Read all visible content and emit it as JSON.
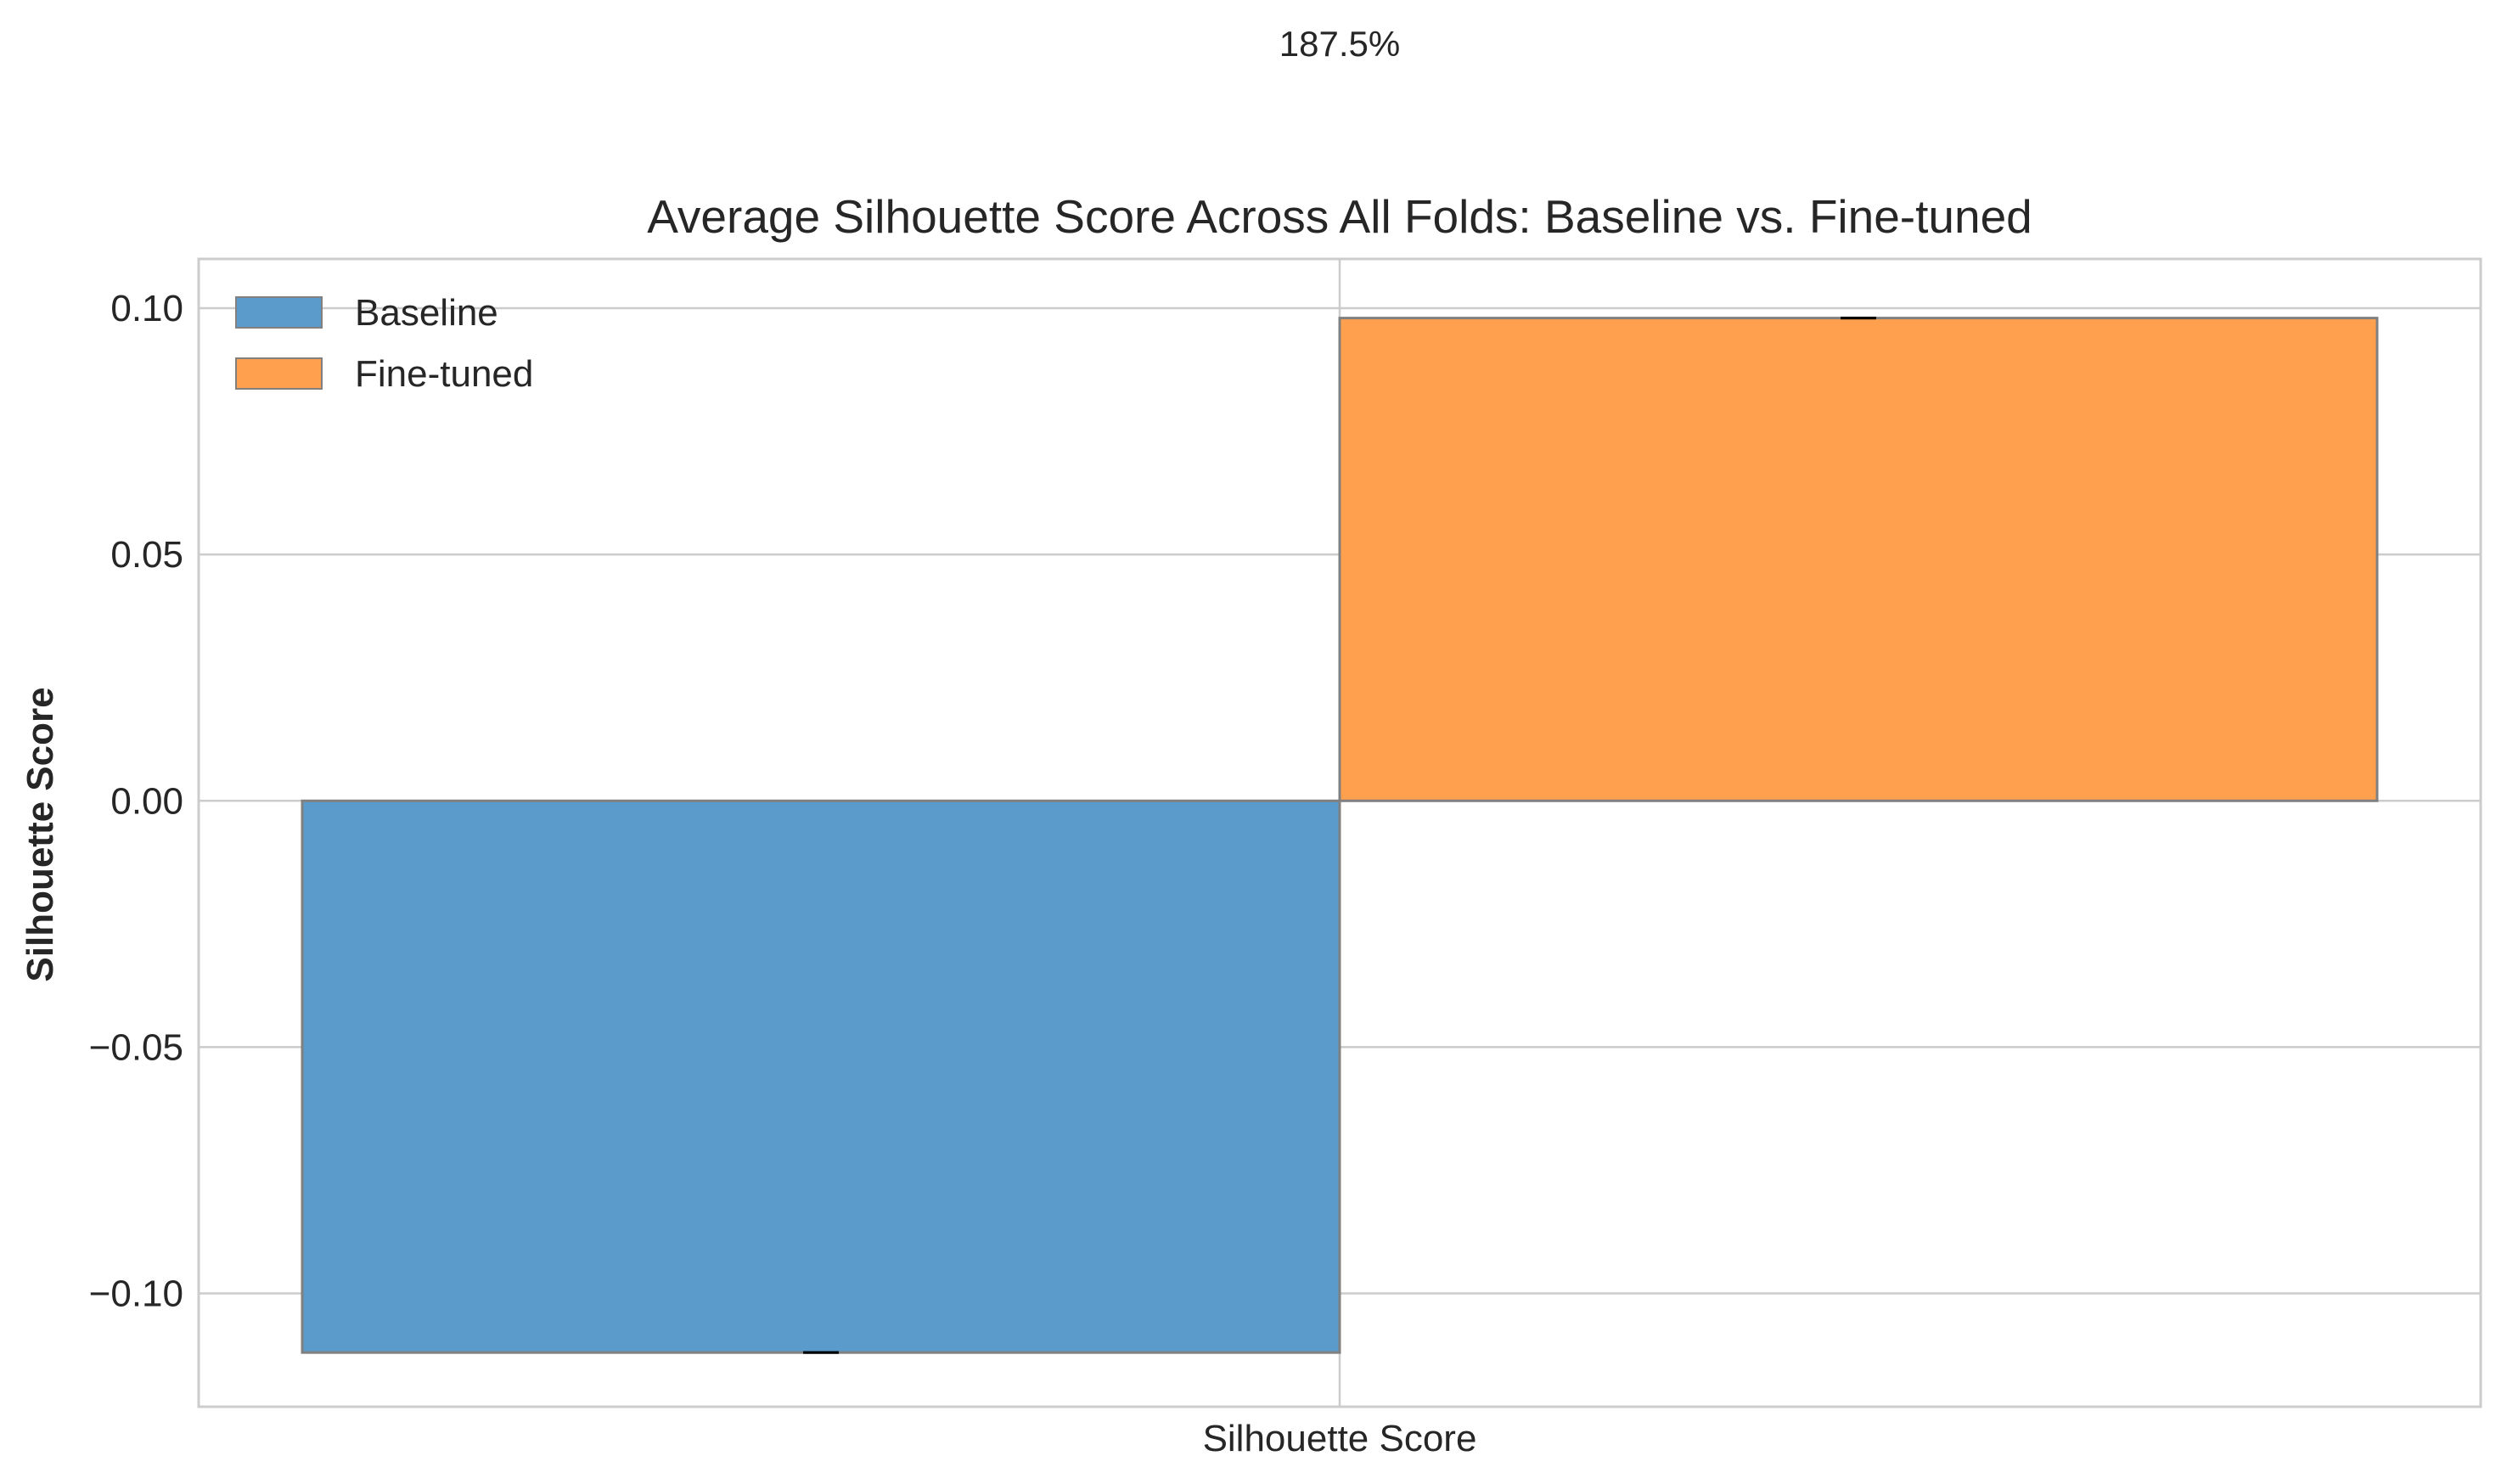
{
  "annotation_top": "187.5%",
  "chart_data": {
    "type": "bar",
    "title": "Average Silhouette Score Across All Folds: Baseline vs. Fine-tuned",
    "xlabel": "",
    "ylabel": "Silhouette Score",
    "categories": [
      "Silhouette Score"
    ],
    "series": [
      {
        "name": "Baseline",
        "values": [
          -0.112
        ],
        "error": [
          0.0
        ],
        "color": "#5b9bcb"
      },
      {
        "name": "Fine-tuned",
        "values": [
          0.098
        ],
        "error": [
          0.0
        ],
        "color": "#ffa04f"
      }
    ],
    "ylim": [
      -0.123,
      0.11
    ],
    "yticks": [
      -0.1,
      -0.05,
      0.0,
      0.05,
      0.1
    ],
    "ytick_labels": [
      "−0.10",
      "−0.05",
      "0.00",
      "0.05",
      "0.10"
    ],
    "grid": true,
    "legend_position": "top-left"
  }
}
